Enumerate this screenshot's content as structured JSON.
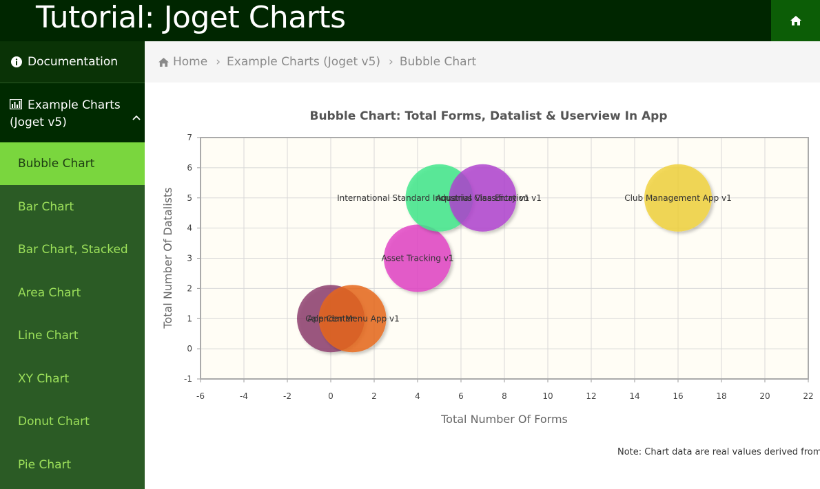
{
  "header": {
    "title": "Tutorial: Joget Charts",
    "home_icon": "home-icon"
  },
  "sidebar": {
    "documentation": {
      "label": "Documentation",
      "icon": "info-circle-icon"
    },
    "group": {
      "label": "Example Charts (Joget v5)",
      "icon": "bar-chart-icon"
    },
    "items": [
      {
        "label": "Bubble Chart",
        "active": true
      },
      {
        "label": "Bar Chart"
      },
      {
        "label": "Bar Chart, Stacked"
      },
      {
        "label": "Area Chart"
      },
      {
        "label": "Line Chart"
      },
      {
        "label": "XY Chart"
      },
      {
        "label": "Donut Chart"
      },
      {
        "label": "Pie Chart"
      }
    ]
  },
  "breadcrumb": {
    "home": "Home",
    "section": "Example Charts (Joget v5)",
    "current": "Bubble Chart"
  },
  "chart_data": {
    "type": "scatter",
    "subtype": "bubble",
    "title": "Bubble Chart: Total Forms, Datalist & Userview In App",
    "xlabel": "Total Number Of Forms",
    "ylabel": "Total Number Of Datalists",
    "xlim": [
      -6,
      22
    ],
    "ylim": [
      -1,
      7
    ],
    "xticks": [
      -6,
      -4,
      -2,
      0,
      2,
      4,
      6,
      8,
      10,
      12,
      14,
      16,
      18,
      20,
      22
    ],
    "yticks": [
      -1,
      0,
      1,
      2,
      3,
      4,
      5,
      6,
      7
    ],
    "grid": true,
    "points": [
      {
        "label": "App Center",
        "x": 0,
        "y": 1,
        "size": 1,
        "color": "#8b3a6b"
      },
      {
        "label": "Calendar Menu App v1",
        "x": 1,
        "y": 1,
        "size": 1,
        "color": "#e8661a"
      },
      {
        "label": "Asset Tracking v1",
        "x": 4,
        "y": 3,
        "size": 1,
        "color": "#e23fc4"
      },
      {
        "label": "International Standard Industrial Classification v1",
        "x": 5,
        "y": 5,
        "size": 1,
        "color": "#3ee88a"
      },
      {
        "label": "Aquarius Visa Entry v1",
        "x": 7,
        "y": 5,
        "size": 1,
        "color": "#b03fd0"
      },
      {
        "label": "Club Management App v1",
        "x": 16,
        "y": 5,
        "size": 1,
        "color": "#f0d23c"
      }
    ]
  },
  "note": "Note: Chart data are real values derived from",
  "colors": {
    "header_bg": "#002600",
    "sidebar_bg": "#2b5b25",
    "active_item": "#7ad63e",
    "link_green": "#9ce05a",
    "plot_bg": "#fffdf5"
  }
}
